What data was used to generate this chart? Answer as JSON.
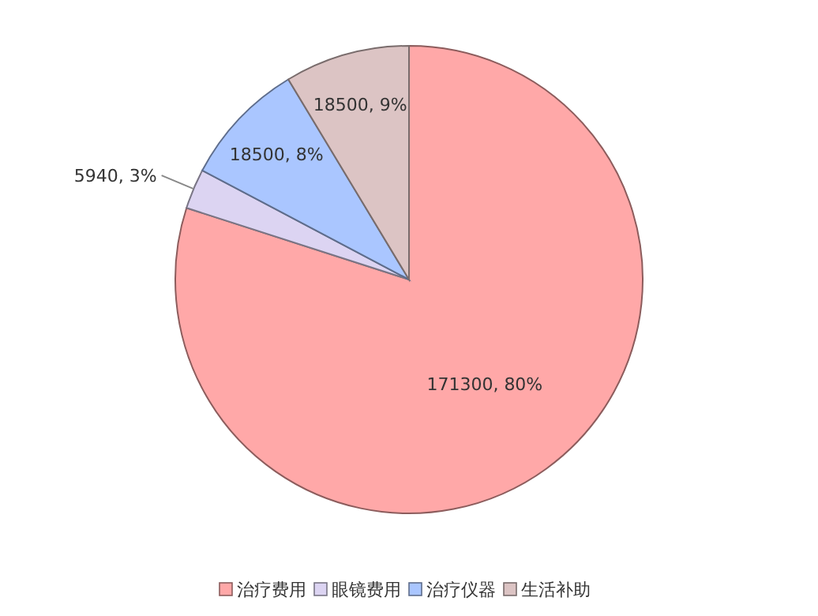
{
  "chart_data": {
    "type": "pie",
    "categories": [
      "治疗费用",
      "眼镜费用",
      "治疗仪器",
      "生活补助"
    ],
    "values": [
      171300,
      5940,
      18500,
      18500
    ],
    "colors": [
      "#ffa8a8",
      "#dcd4f2",
      "#aac6ff",
      "#dcc4c4"
    ],
    "value_labels": [
      "171300, 80%",
      "5940, 3%",
      "18500, 8%",
      "18500, 9%"
    ],
    "legend": "bottom"
  }
}
